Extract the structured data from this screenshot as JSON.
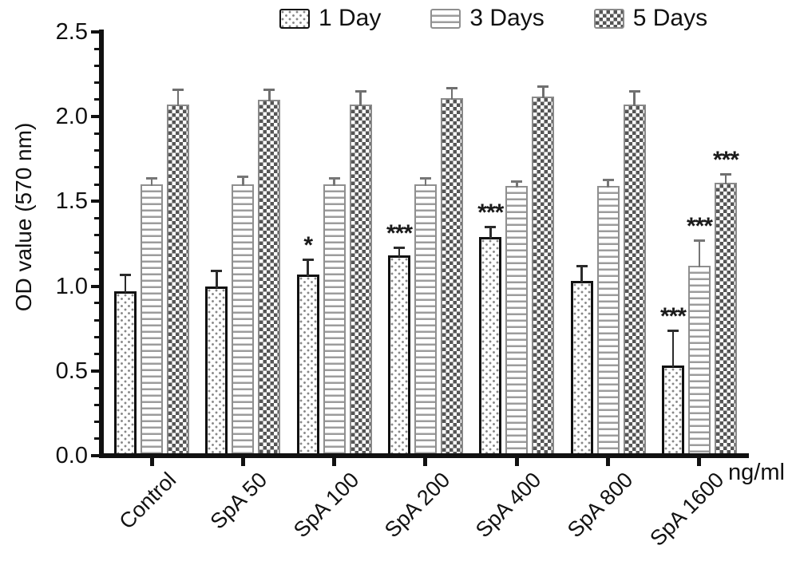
{
  "chart_data": {
    "type": "bar",
    "title": "",
    "ylabel": "OD value (570 nm)",
    "x_unit_label": "ng/ml",
    "ylim": [
      0,
      2.5
    ],
    "y_tick_labels": [
      "0.0",
      "0.5",
      "1.0",
      "1.5",
      "2.0",
      "2.5"
    ],
    "y_major_tick_step": 0.5,
    "y_minor_tick_step": 0.1,
    "grid": false,
    "legend_position": "top",
    "categories": [
      "Control",
      "SpA 50",
      "SpA 100",
      "SpA 200",
      "SpA 400",
      "SpA 800",
      "SpA 1600"
    ],
    "series": [
      {
        "name": "1 Day",
        "pattern": "dots",
        "border_color": "#111111",
        "border_width": 3,
        "error_color": "#2b2b2b",
        "values": [
          0.97,
          1.0,
          1.07,
          1.18,
          1.29,
          1.03,
          0.53
        ],
        "errors": [
          0.1,
          0.09,
          0.09,
          0.05,
          0.06,
          0.09,
          0.21
        ],
        "significance": [
          "",
          "",
          "*",
          "***",
          "***",
          "",
          "***"
        ]
      },
      {
        "name": "3 Days",
        "pattern": "hlines",
        "border_color": "#8f8f8f",
        "border_width": 2,
        "error_color": "#767676",
        "values": [
          1.6,
          1.6,
          1.6,
          1.6,
          1.59,
          1.59,
          1.12
        ],
        "errors": [
          0.04,
          0.05,
          0.04,
          0.04,
          0.03,
          0.04,
          0.15
        ],
        "significance": [
          "",
          "",
          "",
          "",
          "",
          "",
          "***"
        ]
      },
      {
        "name": "5 Days",
        "pattern": "checker",
        "border_color": "#8a8a8a",
        "border_width": 2,
        "error_color": "#6f6f6f",
        "values": [
          2.07,
          2.1,
          2.07,
          2.11,
          2.12,
          2.07,
          1.61
        ],
        "errors": [
          0.09,
          0.06,
          0.08,
          0.06,
          0.06,
          0.08,
          0.05
        ],
        "significance": [
          "",
          "",
          "",
          "",
          "",
          "",
          "***"
        ]
      }
    ],
    "pattern_colors": {
      "dots": "#878787",
      "hlines": "#9c9c9c",
      "checker": "#555555"
    },
    "text_color": "#111111"
  }
}
